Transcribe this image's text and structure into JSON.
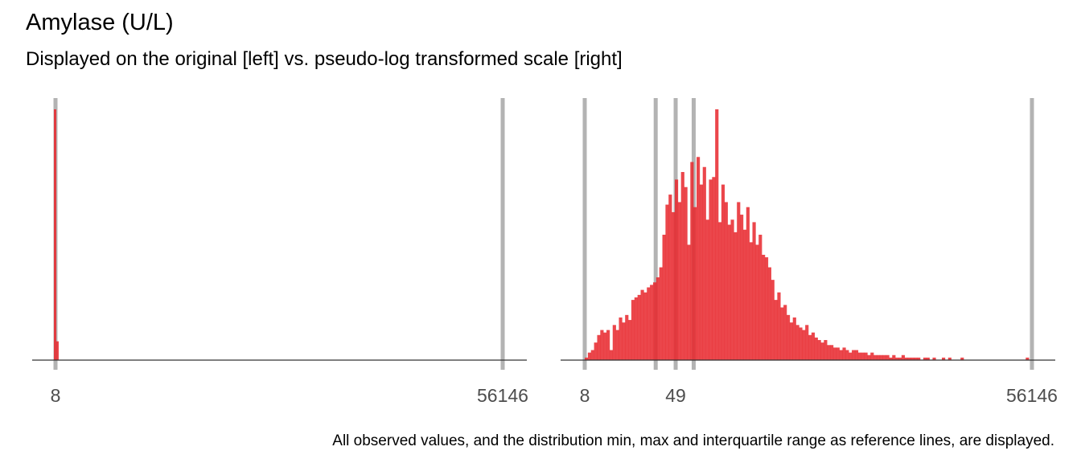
{
  "title": "Amylase (U/L)",
  "subtitle": "Displayed on the original [left] vs. pseudo-log transformed scale [right]",
  "caption": "All observed values, and the distribution min, max and interquartile range as reference lines, are displayed.",
  "colors": {
    "bar": "#e8262b",
    "reference_line": "#b3b3b3",
    "axis": "#333333"
  },
  "chart_data": [
    {
      "type": "bar",
      "panel": "original",
      "scale": "linear",
      "x_tick_labels": [
        "8",
        "56146"
      ],
      "reference_lines": [
        8,
        56146
      ],
      "xlim": [
        8,
        56146
      ],
      "bins": [
        {
          "x": 8,
          "value": 1.0
        },
        {
          "x": 180,
          "value": 0.075
        }
      ]
    },
    {
      "type": "bar",
      "panel": "pseudo-log",
      "scale": "pseudo_log",
      "x_tick_labels": [
        "8",
        "49"
      ],
      "x_tick_labels_max": "56146",
      "reference_lines": [
        8,
        33,
        49,
        70,
        56146
      ],
      "xlim": [
        8,
        56146
      ],
      "histogram_density": [
        0.01,
        0.03,
        0.04,
        0.07,
        0.1,
        0.12,
        0.11,
        0.12,
        0.04,
        0.14,
        0.12,
        0.17,
        0.15,
        0.18,
        0.16,
        0.24,
        0.25,
        0.26,
        0.28,
        0.27,
        0.29,
        0.3,
        0.31,
        0.33,
        0.37,
        0.5,
        0.62,
        0.66,
        0.59,
        0.72,
        0.63,
        0.75,
        0.69,
        0.46,
        0.79,
        0.61,
        0.81,
        0.7,
        0.77,
        0.56,
        0.72,
        0.73,
        1.0,
        0.55,
        0.7,
        0.63,
        0.54,
        0.56,
        0.51,
        0.63,
        0.58,
        0.52,
        0.61,
        0.47,
        0.55,
        0.46,
        0.5,
        0.42,
        0.41,
        0.37,
        0.32,
        0.24,
        0.27,
        0.21,
        0.22,
        0.18,
        0.15,
        0.17,
        0.14,
        0.13,
        0.12,
        0.14,
        0.1,
        0.11,
        0.09,
        0.08,
        0.07,
        0.08,
        0.06,
        0.06,
        0.05,
        0.05,
        0.04,
        0.05,
        0.04,
        0.03,
        0.04,
        0.04,
        0.03,
        0.03,
        0.03,
        0.02,
        0.03,
        0.02,
        0.02,
        0.02,
        0.02,
        0.02,
        0.01,
        0.02,
        0.01,
        0.01,
        0.02,
        0.01,
        0.01,
        0.01,
        0.01,
        0.01,
        0.0,
        0.01,
        0.01,
        0.0,
        0.01,
        0.0,
        0.0,
        0.01,
        0.0,
        0.01,
        0.0,
        0.0,
        0.0,
        0.01,
        0.0,
        0.0,
        0.0,
        0.0,
        0.0,
        0.0,
        0.0,
        0.0,
        0.0,
        0.0,
        0.0,
        0.0,
        0.0,
        0.0,
        0.0,
        0.0,
        0.0,
        0.0,
        0.0,
        0.0,
        0.01,
        0.0
      ]
    }
  ]
}
